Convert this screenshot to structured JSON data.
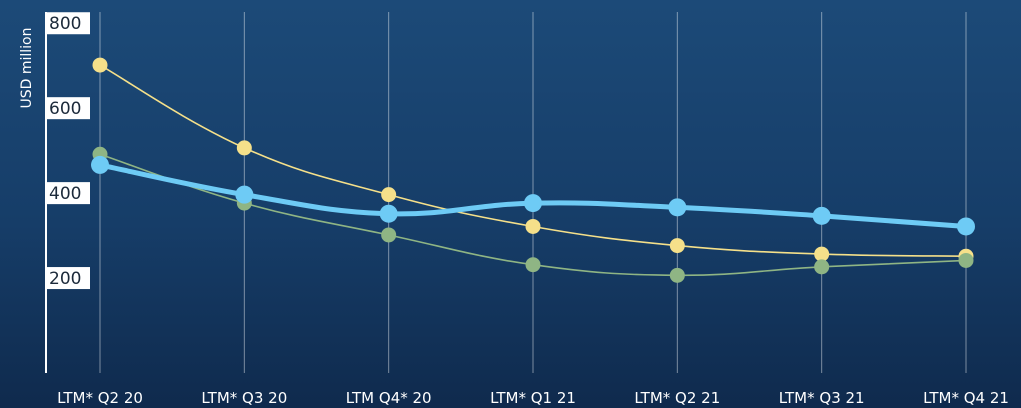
{
  "chart_data": {
    "type": "line",
    "title": "",
    "xlabel": "",
    "ylabel": "USD million",
    "ylim": [
      0,
      850
    ],
    "yticks": [
      200,
      400,
      600,
      800
    ],
    "categories": [
      "LTM* Q2 20",
      "LTM* Q3 20",
      "LTM Q4* 20",
      "LTM* Q1 21",
      "LTM* Q2 21",
      "LTM* Q3 21",
      "LTM* Q4 21"
    ],
    "grid": "vertical",
    "legend": "none",
    "series": [
      {
        "color": "#f5e08a",
        "stroke_width": "thin",
        "values": [
          725,
          530,
          420,
          345,
          300,
          280,
          275
        ]
      },
      {
        "color": "#8fb584",
        "stroke_width": "thin",
        "values": [
          515,
          400,
          325,
          255,
          230,
          250,
          265
        ]
      },
      {
        "color": "#6ecbf5",
        "stroke_width": "thick",
        "values": [
          490,
          420,
          375,
          400,
          390,
          370,
          345
        ]
      }
    ]
  }
}
